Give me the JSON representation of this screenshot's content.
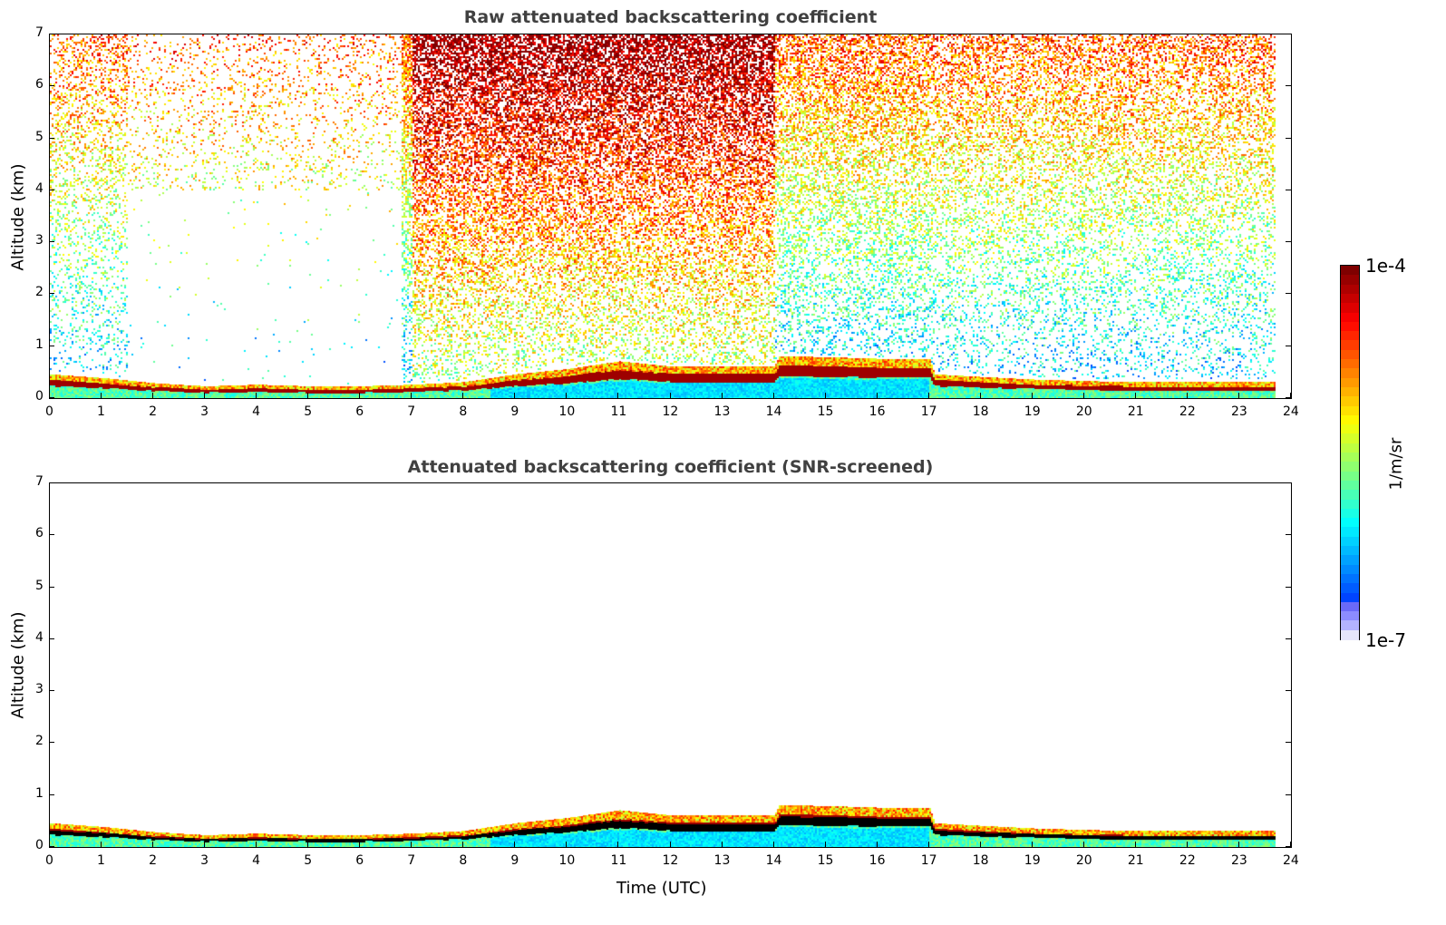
{
  "chart_data": [
    {
      "type": "heatmap",
      "title": "Raw attenuated backscattering coefficient",
      "xlabel": "",
      "ylabel": "Altitude (km)",
      "xlim": [
        0,
        24
      ],
      "ylim": [
        0,
        7
      ],
      "x_ticks": [
        0,
        1,
        2,
        3,
        4,
        5,
        6,
        7,
        8,
        9,
        10,
        11,
        12,
        13,
        14,
        15,
        16,
        17,
        18,
        19,
        20,
        21,
        22,
        23,
        24
      ],
      "y_ticks": [
        0,
        1,
        2,
        3,
        4,
        5,
        6,
        7
      ],
      "screened": false
    },
    {
      "type": "heatmap",
      "title": "Attenuated backscattering coefficient (SNR-screened)",
      "xlabel": "Time (UTC)",
      "ylabel": "Altitude (km)",
      "xlim": [
        0,
        24
      ],
      "ylim": [
        0,
        7
      ],
      "x_ticks": [
        0,
        1,
        2,
        3,
        4,
        5,
        6,
        7,
        8,
        9,
        10,
        11,
        12,
        13,
        14,
        15,
        16,
        17,
        18,
        19,
        20,
        21,
        22,
        23,
        24
      ],
      "y_ticks": [
        0,
        1,
        2,
        3,
        4,
        5,
        6,
        7
      ],
      "screened": true
    }
  ],
  "layer_top_km": {
    "hours": [
      0,
      1,
      2,
      3,
      4,
      5,
      6,
      7,
      8,
      9,
      10,
      11,
      12,
      13,
      14,
      14.1,
      15,
      16,
      17,
      17.1,
      18,
      19,
      20,
      21,
      22,
      23,
      23.7
    ],
    "values": [
      0.45,
      0.38,
      0.28,
      0.22,
      0.25,
      0.22,
      0.22,
      0.25,
      0.3,
      0.45,
      0.55,
      0.7,
      0.6,
      0.6,
      0.6,
      0.8,
      0.78,
      0.75,
      0.75,
      0.45,
      0.4,
      0.35,
      0.32,
      0.3,
      0.3,
      0.3,
      0.3
    ]
  },
  "data_end_hour": 23.7,
  "colorbar": {
    "label": "1/m/sr",
    "max_label": "1e-4",
    "min_label": "1e-7",
    "scale": "log",
    "colormap": "jet"
  }
}
